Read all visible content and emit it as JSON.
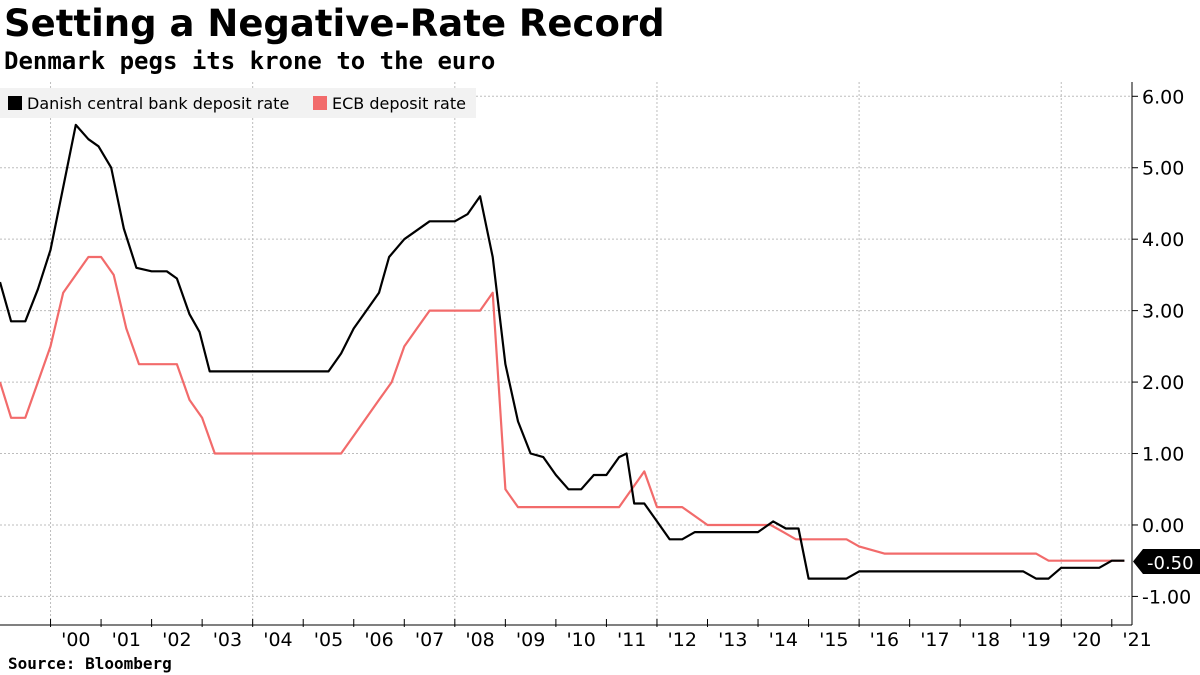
{
  "header": {
    "title": "Setting a Negative-Rate Record",
    "subtitle": "Denmark pegs its krone to the euro"
  },
  "footer": {
    "source": "Source: Bloomberg"
  },
  "colors": {
    "danish": "#000000",
    "ecb": "#f26b6b",
    "grid": "#bdbdbd",
    "axis": "#000000",
    "legend_bg": "#f2f2f2"
  },
  "chart_data": {
    "type": "line",
    "title": "Setting a Negative-Rate Record",
    "subtitle": "Denmark pegs its krone to the euro",
    "xlabel": "",
    "ylabel": "",
    "x_range": [
      1999.0,
      2021.4
    ],
    "ylim": [
      -1.4,
      6.2
    ],
    "y_ticks": [
      6,
      5,
      4,
      3,
      2,
      1,
      0,
      -1
    ],
    "y_tick_labels": [
      "6.00",
      "5.00",
      "4.00",
      "3.00",
      "2.00",
      "1.00",
      "0.00",
      "-1.00"
    ],
    "x_ticks": [
      2000,
      2001,
      2002,
      2003,
      2004,
      2005,
      2006,
      2007,
      2008,
      2009,
      2010,
      2011,
      2012,
      2013,
      2014,
      2015,
      2016,
      2017,
      2018,
      2019,
      2020,
      2021
    ],
    "x_tick_labels": [
      "'00",
      "'01",
      "'02",
      "'03",
      "'04",
      "'05",
      "'06",
      "'07",
      "'08",
      "'09",
      "'10",
      "'11",
      "'12",
      "'13",
      "'14",
      "'15",
      "'16",
      "'17",
      "'18",
      "'19",
      "'20",
      "'21"
    ],
    "grid": true,
    "legend_position": "top-left",
    "last_value_label": "-0.50",
    "series": [
      {
        "name": "Danish central bank deposit rate",
        "color": "#000000",
        "x": [
          1999.0,
          1999.22,
          1999.5,
          1999.75,
          2000.0,
          2000.3,
          2000.5,
          2000.75,
          2000.95,
          2001.2,
          2001.45,
          2001.7,
          2002.0,
          2002.3,
          2002.5,
          2002.75,
          2002.95,
          2003.15,
          2003.5,
          2004.0,
          2004.5,
          2005.0,
          2005.5,
          2005.75,
          2006.0,
          2006.25,
          2006.5,
          2006.7,
          2007.0,
          2007.5,
          2007.75,
          2008.0,
          2008.25,
          2008.5,
          2008.75,
          2009.0,
          2009.25,
          2009.5,
          2009.75,
          2010.0,
          2010.25,
          2010.5,
          2010.75,
          2011.0,
          2011.25,
          2011.4,
          2011.55,
          2011.75,
          2012.0,
          2012.25,
          2012.5,
          2012.75,
          2013.0,
          2013.5,
          2014.0,
          2014.3,
          2014.55,
          2014.8,
          2015.0,
          2015.2,
          2015.5,
          2015.75,
          2016.0,
          2016.5,
          2017.0,
          2017.5,
          2018.0,
          2018.5,
          2019.0,
          2019.25,
          2019.5,
          2019.75,
          2020.0,
          2020.5,
          2020.75,
          2021.0,
          2021.25
        ],
        "values": [
          3.4,
          2.85,
          2.85,
          3.3,
          3.85,
          4.9,
          5.6,
          5.4,
          5.3,
          5.0,
          4.15,
          3.6,
          3.55,
          3.55,
          3.45,
          2.95,
          2.7,
          2.15,
          2.15,
          2.15,
          2.15,
          2.15,
          2.15,
          2.4,
          2.75,
          3.0,
          3.25,
          3.75,
          4.0,
          4.25,
          4.25,
          4.25,
          4.35,
          4.6,
          3.75,
          2.25,
          1.45,
          1.0,
          0.95,
          0.7,
          0.5,
          0.5,
          0.7,
          0.7,
          0.95,
          1.0,
          0.3,
          0.3,
          0.05,
          -0.2,
          -0.2,
          -0.1,
          -0.1,
          -0.1,
          -0.1,
          0.05,
          -0.05,
          -0.05,
          -0.75,
          -0.75,
          -0.75,
          -0.75,
          -0.65,
          -0.65,
          -0.65,
          -0.65,
          -0.65,
          -0.65,
          -0.65,
          -0.65,
          -0.75,
          -0.75,
          -0.6,
          -0.6,
          -0.6,
          -0.5,
          -0.5
        ]
      },
      {
        "name": "ECB deposit rate",
        "color": "#f26b6b",
        "x": [
          1999.0,
          1999.22,
          1999.5,
          1999.75,
          2000.0,
          2000.25,
          2000.5,
          2000.75,
          2001.0,
          2001.25,
          2001.5,
          2001.75,
          2002.0,
          2002.25,
          2002.5,
          2002.75,
          2003.0,
          2003.25,
          2003.5,
          2004.0,
          2004.5,
          2005.0,
          2005.5,
          2005.75,
          2006.0,
          2006.25,
          2006.5,
          2006.75,
          2007.0,
          2007.25,
          2007.5,
          2008.0,
          2008.25,
          2008.5,
          2008.75,
          2009.0,
          2009.25,
          2009.5,
          2010.0,
          2010.5,
          2011.0,
          2011.25,
          2011.5,
          2011.75,
          2012.0,
          2012.25,
          2012.5,
          2013.0,
          2013.5,
          2014.0,
          2014.25,
          2014.5,
          2014.75,
          2015.0,
          2015.5,
          2015.75,
          2016.0,
          2016.5,
          2017.0,
          2017.5,
          2018.0,
          2018.5,
          2019.0,
          2019.5,
          2019.75,
          2020.0,
          2020.5,
          2021.0,
          2021.25
        ],
        "values": [
          2.0,
          1.5,
          1.5,
          2.0,
          2.5,
          3.25,
          3.5,
          3.75,
          3.75,
          3.5,
          2.75,
          2.25,
          2.25,
          2.25,
          2.25,
          1.75,
          1.5,
          1.0,
          1.0,
          1.0,
          1.0,
          1.0,
          1.0,
          1.0,
          1.25,
          1.5,
          1.75,
          2.0,
          2.5,
          2.75,
          3.0,
          3.0,
          3.0,
          3.0,
          3.25,
          0.5,
          0.25,
          0.25,
          0.25,
          0.25,
          0.25,
          0.25,
          0.5,
          0.75,
          0.25,
          0.25,
          0.25,
          0.0,
          0.0,
          0.0,
          0.0,
          -0.1,
          -0.2,
          -0.2,
          -0.2,
          -0.2,
          -0.3,
          -0.4,
          -0.4,
          -0.4,
          -0.4,
          -0.4,
          -0.4,
          -0.4,
          -0.5,
          -0.5,
          -0.5,
          -0.5,
          -0.5
        ]
      }
    ]
  }
}
